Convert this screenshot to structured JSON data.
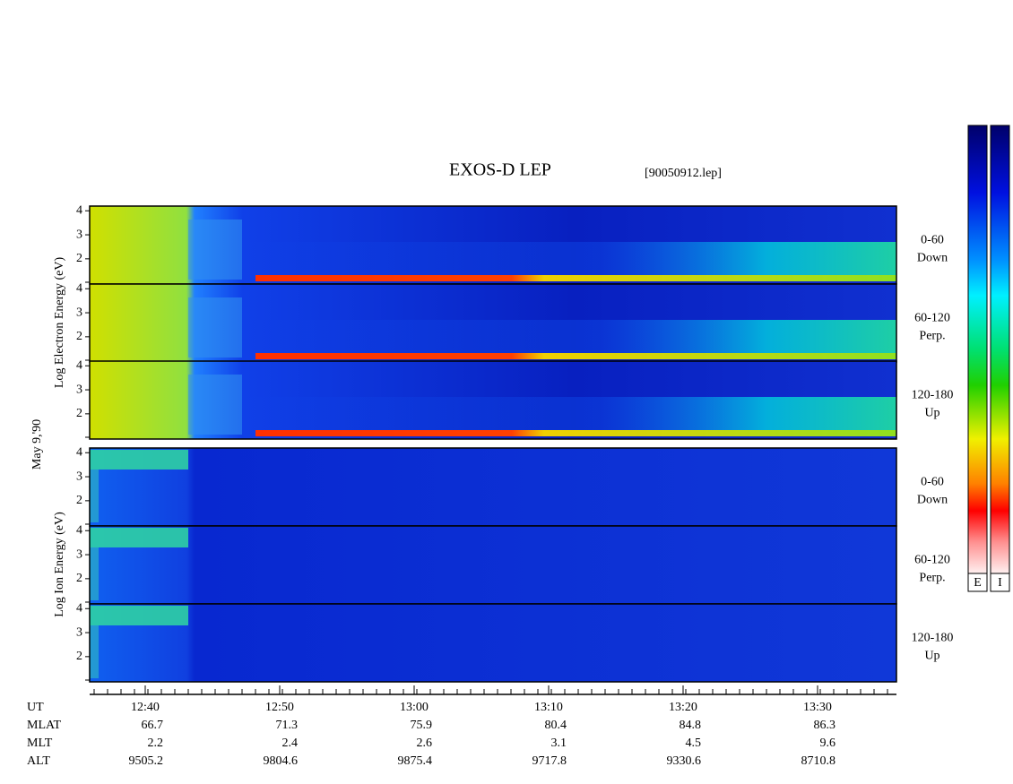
{
  "title": "EXOS-D LEP",
  "file": "[90050912.lep]",
  "left_labels": {
    "electron": "Log Electron Energy (eV)",
    "date": "May 9,'90",
    "ion": "Log Ion Energy (eV)"
  },
  "panels": [
    {
      "label": [
        "0-60",
        "Down"
      ],
      "yticks": [
        2,
        3,
        4
      ]
    },
    {
      "label": [
        "60-120",
        "Perp."
      ],
      "yticks": [
        2,
        3,
        4
      ]
    },
    {
      "label": [
        "120-180",
        "Up"
      ],
      "yticks": [
        2,
        3,
        4
      ]
    },
    {
      "label": [
        "0-60",
        "Down"
      ],
      "yticks": [
        2,
        3,
        4
      ]
    },
    {
      "label": [
        "60-120",
        "Perp."
      ],
      "yticks": [
        2,
        3,
        4
      ]
    },
    {
      "label": [
        "120-180",
        "Up"
      ],
      "yticks": [
        2,
        3,
        4
      ]
    }
  ],
  "rows": [
    {
      "name": "UT",
      "values": [
        "12:40",
        "12:50",
        "13:00",
        "13:10",
        "13:20",
        "13:30"
      ]
    },
    {
      "name": "MLAT",
      "values": [
        "66.7",
        "71.3",
        "75.9",
        "80.4",
        "84.8",
        "86.3"
      ]
    },
    {
      "name": "MLT",
      "values": [
        "2.2",
        "2.4",
        "2.6",
        "3.1",
        "4.5",
        "9.6"
      ]
    },
    {
      "name": "ALT",
      "values": [
        "9505.2",
        "9804.6",
        "9875.4",
        "9717.8",
        "9330.6",
        "8710.8"
      ]
    }
  ],
  "colorbars": [
    "E",
    "I"
  ]
}
